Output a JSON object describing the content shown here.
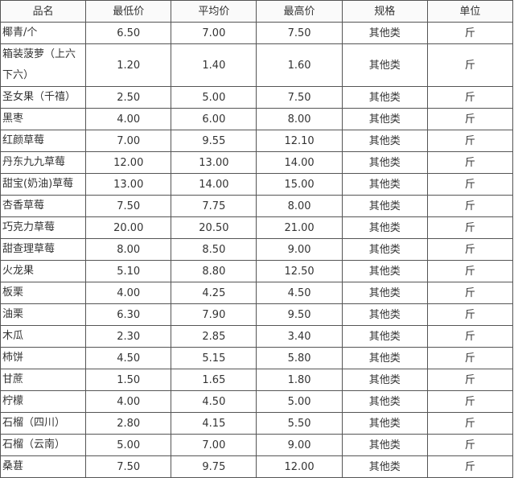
{
  "headers": [
    "品名",
    "最低价",
    "平均价",
    "最高价",
    "规格",
    "单位"
  ],
  "rows": [
    [
      "椰青/个",
      "6.50",
      "7.00",
      "7.50",
      "其他类",
      "斤"
    ],
    [
      "箱装菠萝（上六下六）",
      "1.20",
      "1.40",
      "1.60",
      "其他类",
      "斤"
    ],
    [
      "圣女果（千禧）",
      "2.50",
      "5.00",
      "7.50",
      "其他类",
      "斤"
    ],
    [
      "黑枣",
      "4.00",
      "6.00",
      "8.00",
      "其他类",
      "斤"
    ],
    [
      "红颜草莓",
      "7.00",
      "9.55",
      "12.10",
      "其他类",
      "斤"
    ],
    [
      "丹东九九草莓",
      "12.00",
      "13.00",
      "14.00",
      "其他类",
      "斤"
    ],
    [
      "甜宝(奶油)草莓",
      "13.00",
      "14.00",
      "15.00",
      "其他类",
      "斤"
    ],
    [
      "杏香草莓",
      "7.50",
      "7.75",
      "8.00",
      "其他类",
      "斤"
    ],
    [
      "巧克力草莓",
      "20.00",
      "20.50",
      "21.00",
      "其他类",
      "斤"
    ],
    [
      "甜查理草莓",
      "8.00",
      "8.50",
      "9.00",
      "其他类",
      "斤"
    ],
    [
      "火龙果",
      "5.10",
      "8.80",
      "12.50",
      "其他类",
      "斤"
    ],
    [
      "板栗",
      "4.00",
      "4.25",
      "4.50",
      "其他类",
      "斤"
    ],
    [
      "油栗",
      "6.30",
      "7.90",
      "9.50",
      "其他类",
      "斤"
    ],
    [
      "木瓜",
      "2.30",
      "2.85",
      "3.40",
      "其他类",
      "斤"
    ],
    [
      "柿饼",
      "4.50",
      "5.15",
      "5.80",
      "其他类",
      "斤"
    ],
    [
      "甘蔗",
      "1.50",
      "1.65",
      "1.80",
      "其他类",
      "斤"
    ],
    [
      "柠檬",
      "4.00",
      "4.50",
      "5.00",
      "其他类",
      "斤"
    ],
    [
      "石榴（四川）",
      "2.80",
      "4.15",
      "5.50",
      "其他类",
      "斤"
    ],
    [
      "石榴（云南）",
      "5.00",
      "7.00",
      "9.00",
      "其他类",
      "斤"
    ],
    [
      "桑葚",
      "7.50",
      "9.75",
      "12.00",
      "其他类",
      "斤"
    ]
  ]
}
